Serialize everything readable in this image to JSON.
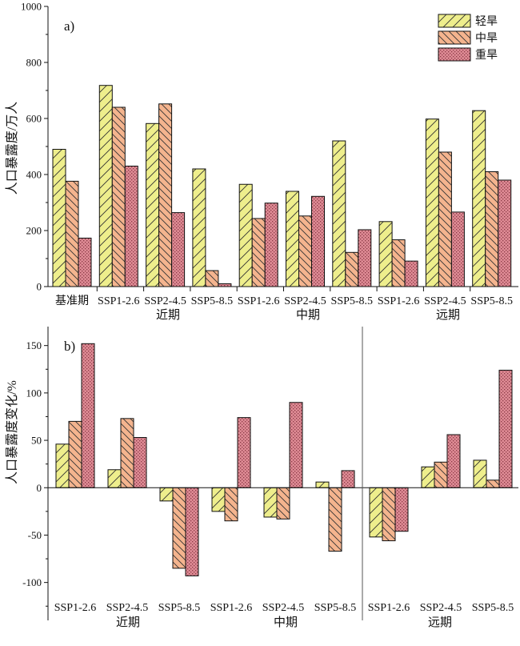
{
  "chart_data": [
    {
      "type": "bar",
      "panel_label": "a)",
      "ylabel": "人口暴露度/万人",
      "ylim": [
        0,
        1000
      ],
      "yticks": [
        0,
        200,
        400,
        600,
        800,
        1000
      ],
      "legend_position": "top-right",
      "series_colors": [
        "#EEEE8C",
        "#F4B48E",
        "#DE8A94"
      ],
      "categories": [
        "基准期",
        "SSP1-2.6",
        "SSP2-4.5",
        "SSP5-8.5",
        "SSP1-2.6",
        "SSP2-4.5",
        "SSP5-8.5",
        "SSP1-2.6",
        "SSP2-4.5",
        "SSP5-8.5"
      ],
      "category_periods": [
        "",
        "近期",
        "近期",
        "近期",
        "中期",
        "中期",
        "中期",
        "远期",
        "远期",
        "远期"
      ],
      "period_labels": [
        "近期",
        "中期",
        "远期"
      ],
      "series": [
        {
          "name": "轻旱",
          "values": [
            490,
            718,
            582,
            420,
            365,
            340,
            520,
            232,
            598,
            628
          ]
        },
        {
          "name": "中旱",
          "values": [
            376,
            640,
            652,
            57,
            243,
            252,
            122,
            167,
            480,
            410
          ]
        },
        {
          "name": "重旱",
          "values": [
            173,
            430,
            264,
            10,
            298,
            322,
            203,
            91,
            266,
            380
          ]
        }
      ]
    },
    {
      "type": "bar",
      "panel_label": "b)",
      "ylabel": "人口暴露度变化/%",
      "ylim": [
        -140,
        170
      ],
      "yticks": [
        -100,
        -50,
        0,
        50,
        100,
        150
      ],
      "categories": [
        "SSP1-2.6",
        "SSP2-4.5",
        "SSP5-8.5",
        "SSP1-2.6",
        "SSP2-4.5",
        "SSP5-8.5",
        "SSP1-2.6",
        "SSP2-4.5",
        "SSP5-8.5"
      ],
      "category_periods": [
        "近期",
        "近期",
        "近期",
        "中期",
        "中期",
        "中期",
        "远期",
        "远期",
        "远期"
      ],
      "period_labels": [
        "近期",
        "中期",
        "远期"
      ],
      "series": [
        {
          "name": "轻旱",
          "values": [
            46,
            19,
            -14,
            -25,
            -31,
            6,
            -52,
            22,
            29
          ]
        },
        {
          "name": "中旱",
          "values": [
            70,
            73,
            -85,
            -35,
            -33,
            -67,
            -56,
            27,
            8
          ]
        },
        {
          "name": "重旱",
          "values": [
            152,
            53,
            -93,
            74,
            90,
            18,
            -46,
            56,
            124
          ]
        }
      ]
    }
  ]
}
